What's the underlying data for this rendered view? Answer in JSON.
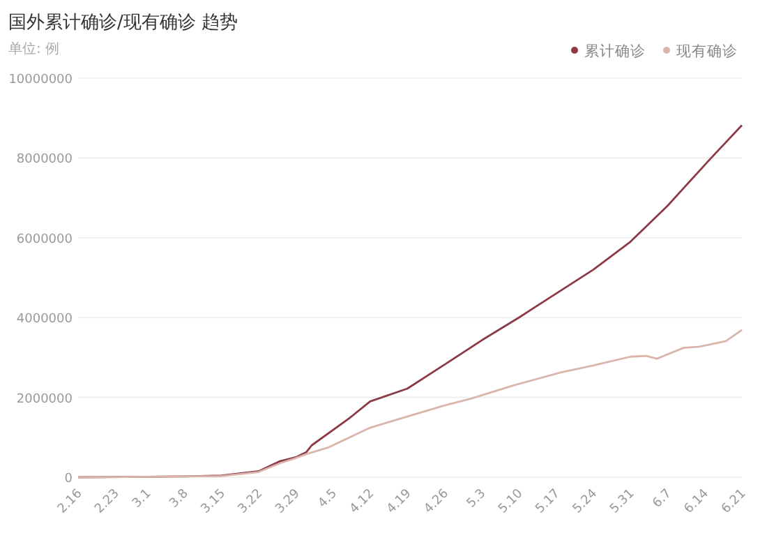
{
  "chart_data": {
    "type": "line",
    "title": "国外累计确诊/现有确诊 趋势",
    "subtitle": "单位: 例",
    "legend": "top right",
    "grid": "y",
    "marker": "none",
    "line_style": "solid",
    "xlim": [
      "--02-16",
      "--06-21"
    ],
    "xticks": [
      {
        "value": "--02-16",
        "label": "2.16"
      },
      {
        "value": "--02-23",
        "label": "2.23"
      },
      {
        "value": "--03-01",
        "label": "3.1"
      },
      {
        "value": "--03-08",
        "label": "3.8"
      },
      {
        "value": "--03-15",
        "label": "3.15"
      },
      {
        "value": "--03-22",
        "label": "3.22"
      },
      {
        "value": "--03-29",
        "label": "3.29"
      },
      {
        "value": "--04-05",
        "label": "4.5"
      },
      {
        "value": "--04-12",
        "label": "4.12"
      },
      {
        "value": "--04-19",
        "label": "4.19"
      },
      {
        "value": "--04-26",
        "label": "4.26"
      },
      {
        "value": "--05-03",
        "label": "5.3"
      },
      {
        "value": "--05-10",
        "label": "5.10"
      },
      {
        "value": "--05-17",
        "label": "5.17"
      },
      {
        "value": "--05-24",
        "label": "5.24"
      },
      {
        "value": "--05-31",
        "label": "5.31"
      },
      {
        "value": "--06-07",
        "label": "6.7"
      },
      {
        "value": "--06-14",
        "label": "6.14"
      },
      {
        "value": "--06-21",
        "label": "6.21"
      }
    ],
    "ylim": [
      0,
      10000000
    ],
    "yticks": [
      0,
      2000000,
      4000000,
      6000000,
      8000000,
      10000000
    ],
    "series": [
      {
        "name": "累计确诊",
        "color": "#8b3a46",
        "x": [
          "--02-16",
          "--03-01",
          "--03-08",
          "--03-15",
          "--03-22",
          "--03-26",
          "--03-29",
          "--03-31",
          "--04-01",
          "--04-08",
          "--04-12",
          "--04-19",
          "--04-26",
          "--05-03",
          "--05-10",
          "--05-17",
          "--05-24",
          "--05-31",
          "--06-07",
          "--06-10",
          "--06-15",
          "--06-21"
        ],
        "values": [
          0,
          10000,
          20000,
          40000,
          150000,
          400000,
          500000,
          630000,
          800000,
          1470000,
          1900000,
          2220000,
          2820000,
          3430000,
          4000000,
          4600000,
          5200000,
          5900000,
          6800000,
          7240000,
          7970000,
          8820000
        ]
      },
      {
        "name": "现有确诊",
        "color": "#d9b5ac",
        "x": [
          "--02-16",
          "--03-01",
          "--03-08",
          "--03-15",
          "--03-22",
          "--03-26",
          "--03-29",
          "--03-31",
          "--04-04",
          "--04-12",
          "--04-15",
          "--04-26",
          "--05-01",
          "--05-09",
          "--05-18",
          "--05-24",
          "--05-31",
          "--06-03",
          "--06-05",
          "--06-10",
          "--06-13",
          "--06-18",
          "--06-21"
        ],
        "values": [
          0,
          10000,
          20000,
          30000,
          130000,
          350000,
          480000,
          580000,
          740000,
          1240000,
          1360000,
          1800000,
          1970000,
          2300000,
          2630000,
          2800000,
          3020000,
          3040000,
          2970000,
          3240000,
          3270000,
          3410000,
          3690000
        ]
      }
    ]
  }
}
